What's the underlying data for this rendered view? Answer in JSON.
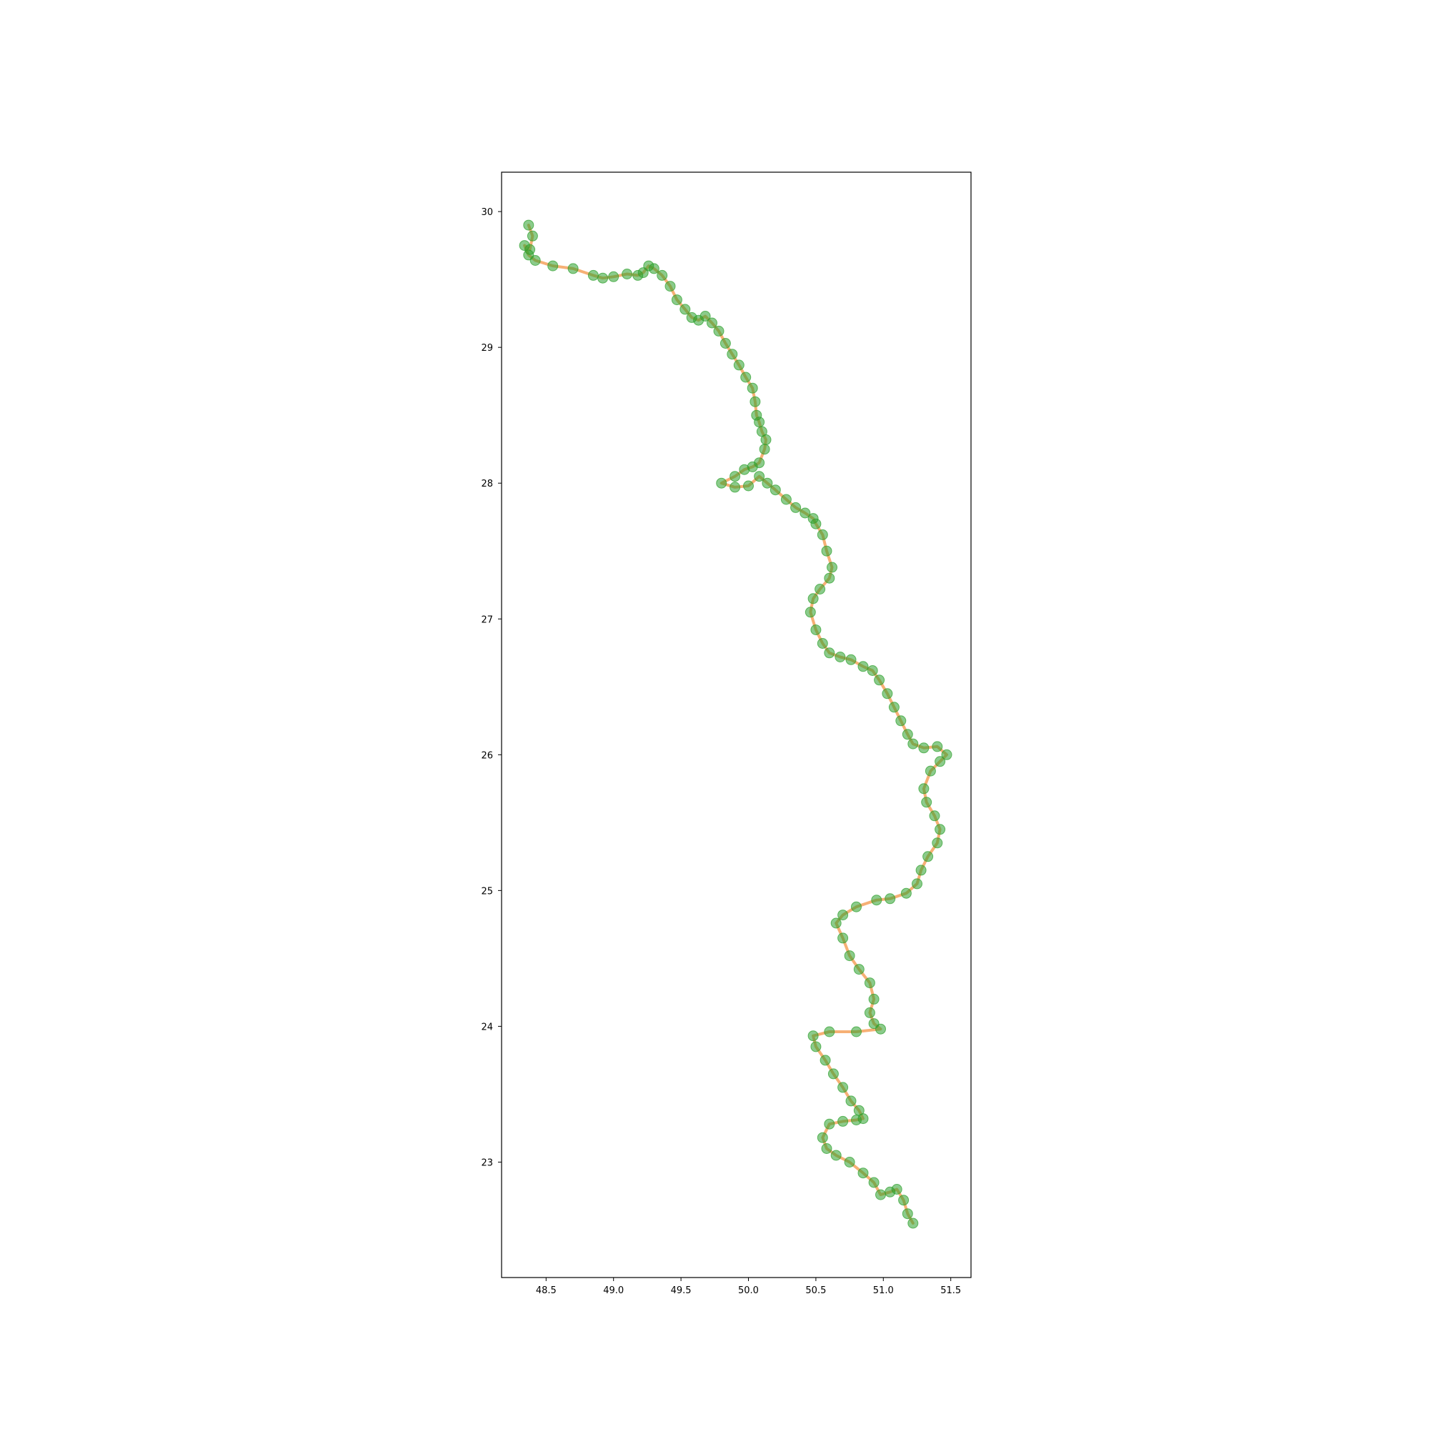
{
  "chart_data": {
    "type": "line",
    "title": "",
    "xlabel": "",
    "ylabel": "",
    "xlim": [
      48.17,
      51.65
    ],
    "ylim": [
      22.15,
      30.29
    ],
    "x_ticks": [
      48.5,
      49.0,
      49.5,
      50.0,
      50.5,
      51.0,
      51.5
    ],
    "x_tick_labels": [
      "48.5",
      "49.0",
      "49.5",
      "50.0",
      "50.5",
      "51.0",
      "51.5"
    ],
    "y_ticks": [
      23,
      24,
      25,
      26,
      27,
      28,
      29,
      30
    ],
    "y_tick_labels": [
      "23",
      "24",
      "25",
      "26",
      "27",
      "28",
      "29",
      "30"
    ],
    "grid": false,
    "legend": "none",
    "colors": {
      "line": "#f5a25d",
      "points": "#2ca02c",
      "axes": "#000000",
      "background": "#ffffff"
    },
    "series": [
      {
        "style": "line+scatter",
        "x": [
          48.37,
          48.4,
          48.38,
          48.34,
          48.37,
          48.42,
          48.55,
          48.7,
          48.85,
          48.92,
          49.0,
          49.1,
          49.18,
          49.22,
          49.26,
          49.3,
          49.36,
          49.42,
          49.47,
          49.53,
          49.58,
          49.63,
          49.68,
          49.73,
          49.78,
          49.83,
          49.88,
          49.93,
          49.98,
          50.03,
          50.05,
          50.06,
          50.08,
          50.1,
          50.13,
          50.12,
          50.08,
          50.03,
          49.97,
          49.9,
          49.8,
          49.9,
          50.0,
          50.08,
          50.14,
          50.2,
          50.28,
          50.35,
          50.42,
          50.48,
          50.5,
          50.55,
          50.58,
          50.62,
          50.6,
          50.53,
          50.48,
          50.46,
          50.5,
          50.55,
          50.6,
          50.68,
          50.76,
          50.85,
          50.92,
          50.97,
          51.03,
          51.08,
          51.13,
          51.18,
          51.22,
          51.3,
          51.4,
          51.47,
          51.42,
          51.35,
          51.3,
          51.32,
          51.38,
          51.42,
          51.4,
          51.33,
          51.28,
          51.25,
          51.17,
          51.05,
          50.95,
          50.8,
          50.7,
          50.65,
          50.7,
          50.75,
          50.82,
          50.9,
          50.93,
          50.9,
          50.93,
          50.98,
          50.8,
          50.6,
          50.48,
          50.5,
          50.57,
          50.63,
          50.7,
          50.76,
          50.82,
          50.85,
          50.8,
          50.7,
          50.6,
          50.55,
          50.58,
          50.65,
          50.75,
          50.85,
          50.93,
          50.98,
          51.05,
          51.1,
          51.15,
          51.18,
          51.22
        ],
        "y": [
          29.9,
          29.82,
          29.72,
          29.75,
          29.68,
          29.64,
          29.6,
          29.58,
          29.53,
          29.51,
          29.52,
          29.54,
          29.53,
          29.55,
          29.6,
          29.58,
          29.53,
          29.45,
          29.35,
          29.28,
          29.22,
          29.2,
          29.23,
          29.18,
          29.12,
          29.03,
          28.95,
          28.87,
          28.78,
          28.7,
          28.6,
          28.5,
          28.45,
          28.38,
          28.32,
          28.25,
          28.15,
          28.12,
          28.1,
          28.05,
          28.0,
          27.97,
          27.98,
          28.05,
          28.0,
          27.95,
          27.88,
          27.82,
          27.78,
          27.74,
          27.7,
          27.62,
          27.5,
          27.38,
          27.3,
          27.22,
          27.15,
          27.05,
          26.92,
          26.82,
          26.75,
          26.72,
          26.7,
          26.65,
          26.62,
          26.55,
          26.45,
          26.35,
          26.25,
          26.15,
          26.08,
          26.05,
          26.06,
          26.0,
          25.95,
          25.88,
          25.75,
          25.65,
          25.55,
          25.45,
          25.35,
          25.25,
          25.15,
          25.05,
          24.98,
          24.94,
          24.93,
          24.88,
          24.82,
          24.76,
          24.65,
          24.52,
          24.42,
          24.32,
          24.2,
          24.1,
          24.02,
          23.98,
          23.96,
          23.96,
          23.93,
          23.85,
          23.75,
          23.65,
          23.55,
          23.45,
          23.38,
          23.32,
          23.31,
          23.3,
          23.28,
          23.18,
          23.1,
          23.05,
          23.0,
          22.92,
          22.85,
          22.76,
          22.78,
          22.8,
          22.72,
          22.62,
          22.55
        ]
      }
    ]
  }
}
